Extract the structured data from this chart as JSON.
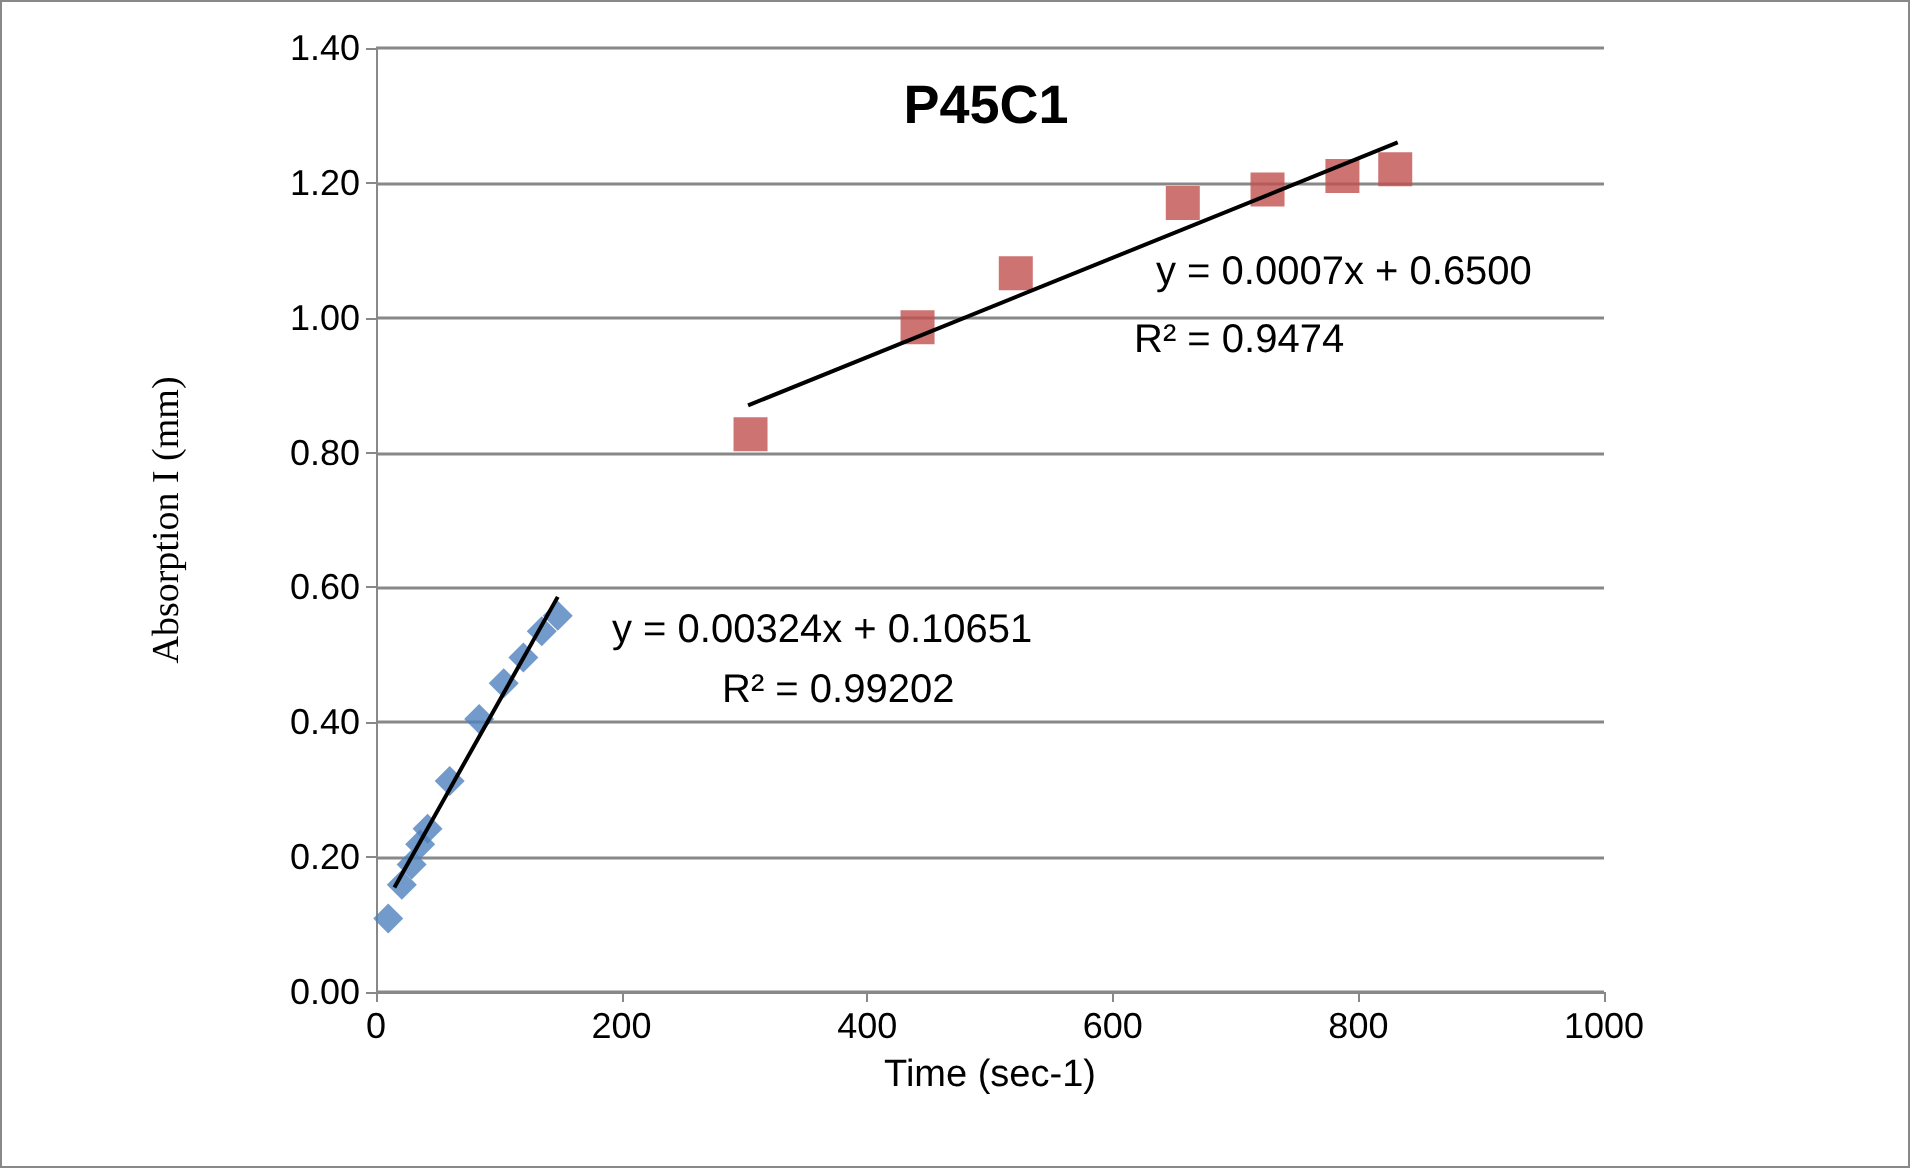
{
  "chart_data": {
    "type": "scatter",
    "title": "P45C1",
    "xlabel": "Time (sec-1)",
    "ylabel": "Absorption I (mm)",
    "xlim": [
      0,
      1000
    ],
    "xticks": [
      0,
      200,
      400,
      600,
      800,
      1000
    ],
    "ylim": [
      0,
      1.4
    ],
    "yticks": [
      {
        "value": 0,
        "label": "0.00"
      },
      {
        "value": 0.2,
        "label": "0.20"
      },
      {
        "value": 0.4,
        "label": "0.40"
      },
      {
        "value": 0.6,
        "label": "0.60"
      },
      {
        "value": 0.8,
        "label": "0.80"
      },
      {
        "value": 1.0,
        "label": "1.00"
      },
      {
        "value": 1.2,
        "label": "1.20"
      },
      {
        "value": 1.4,
        "label": "1.40"
      }
    ],
    "grid": "y",
    "series": [
      {
        "type": "scatter",
        "marker": "diamond",
        "color": "#4f81bd",
        "x": [
          10,
          21,
          29,
          36,
          42,
          60,
          84,
          104,
          120,
          135,
          148
        ],
        "values": [
          0.109,
          0.159,
          0.189,
          0.219,
          0.242,
          0.313,
          0.405,
          0.458,
          0.496,
          0.535,
          0.558
        ]
      },
      {
        "type": "scatter",
        "marker": "square",
        "color": "#c0504d",
        "x": [
          305,
          441,
          521,
          657,
          726,
          787,
          830
        ],
        "values": [
          0.827,
          0.986,
          1.066,
          1.17,
          1.19,
          1.21,
          1.22
        ]
      },
      {
        "type": "line",
        "marker": "none",
        "color": "#000000",
        "x": [
          15,
          148
        ],
        "values": [
          0.155,
          0.586
        ]
      },
      {
        "type": "line",
        "marker": "none",
        "color": "#000000",
        "x": [
          303,
          832
        ],
        "values": [
          0.87,
          1.26
        ]
      }
    ],
    "annotations": [
      "y = 0.00324x + 0.10651",
      "R² = 0.99202",
      "y = 0.0007x + 0.6500",
      "R² = 0.9474"
    ]
  }
}
